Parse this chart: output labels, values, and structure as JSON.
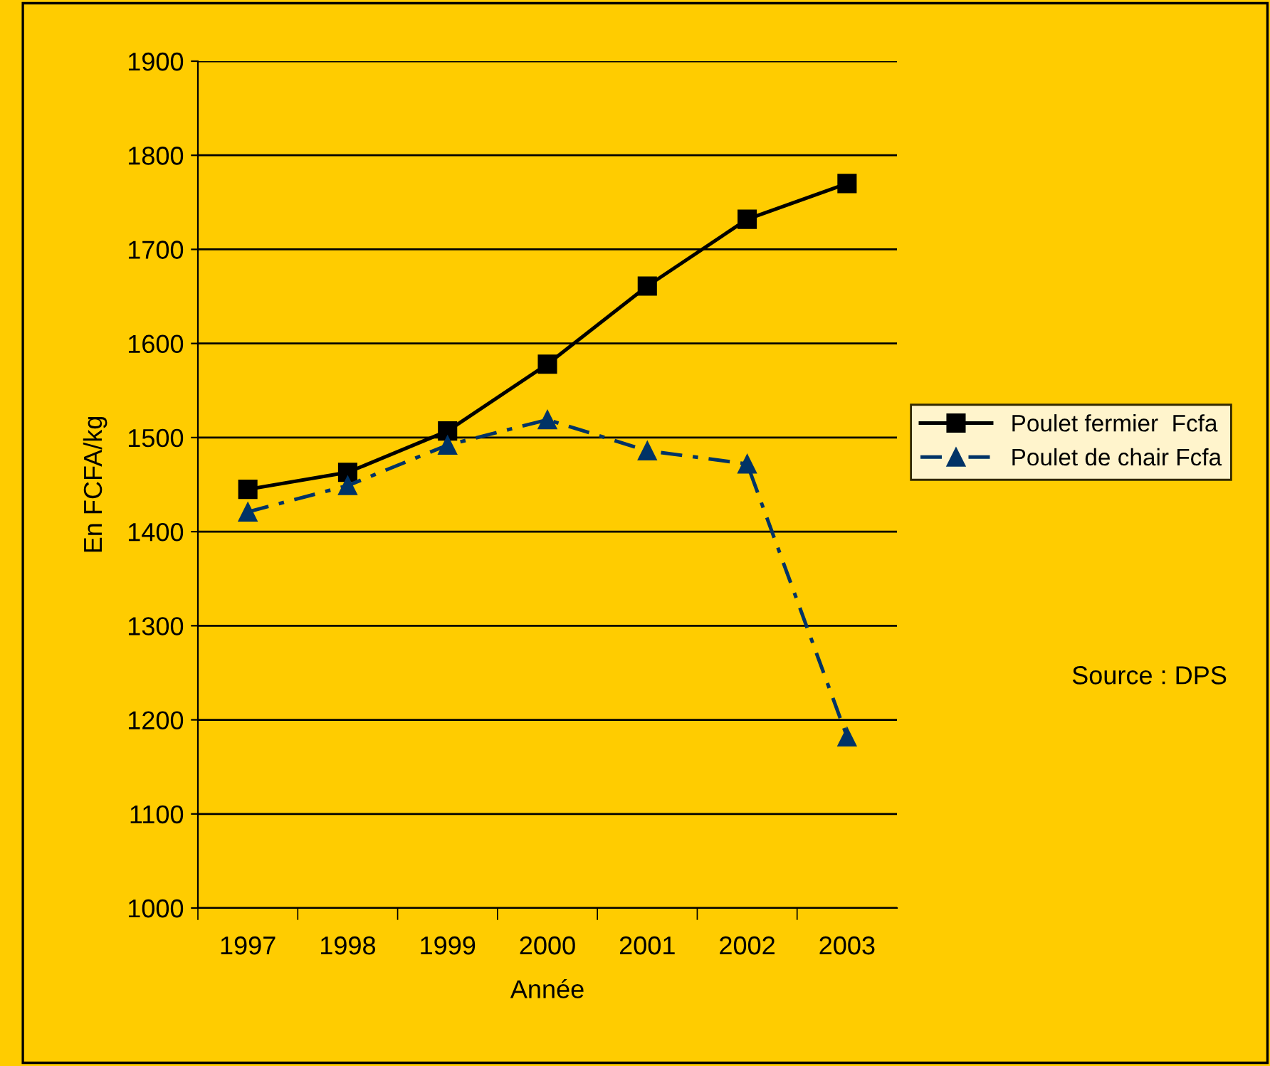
{
  "chart_data": {
    "type": "line",
    "xlabel": "Année",
    "ylabel": "En FCFA/kg",
    "categories": [
      "1997",
      "1998",
      "1999",
      "2000",
      "2001",
      "2002",
      "2003"
    ],
    "series": [
      {
        "name": "Poulet fermier  Fcfa",
        "color": "#000000",
        "marker": "square",
        "line_style": "solid",
        "values": [
          1445,
          1463,
          1507,
          1578,
          1661,
          1732,
          1770
        ]
      },
      {
        "name": "Poulet de chair Fcfa",
        "color": "#003366",
        "marker": "triangle",
        "line_style": "dashed",
        "values": [
          1421,
          1449,
          1492,
          1519,
          1486,
          1472,
          1182
        ]
      }
    ],
    "ylim": [
      1000,
      1900
    ],
    "yticks": [
      1000,
      1100,
      1200,
      1300,
      1400,
      1500,
      1600,
      1700,
      1800,
      1900
    ],
    "grid": "y",
    "legend": "right",
    "annotations": [
      "Source : DPS"
    ]
  }
}
